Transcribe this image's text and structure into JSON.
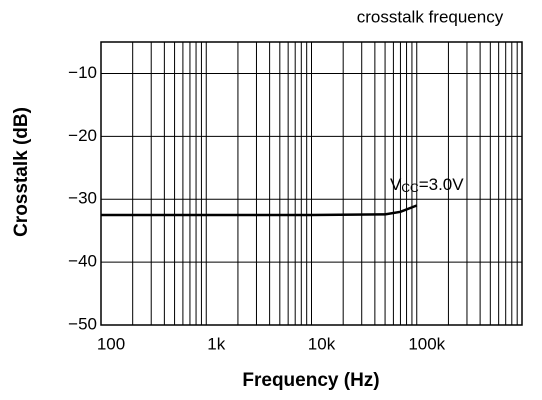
{
  "chart_data": {
    "type": "line",
    "title": "crosstalk frequency",
    "x_label": "Frequency (Hz)",
    "y_label": "Crosstalk (dB)",
    "x": [
      100,
      1000,
      10000,
      50000,
      70000,
      100000
    ],
    "series": [
      {
        "name": "VCC=3.0V",
        "color": "#000000",
        "values": [
          -32.5,
          -32.5,
          -32.5,
          -32.4,
          -32.0,
          -31.0
        ]
      }
    ],
    "annotation": [
      "V",
      "CC",
      "=3.0V"
    ],
    "xlim": [
      100,
      1000000
    ],
    "xlog": true,
    "xticks": [
      100,
      {
        "value": 1000,
        "label": "1k"
      },
      {
        "value": 10000,
        "label": "10k"
      },
      {
        "value": 100000,
        "label": "100k"
      }
    ],
    "ylim": [
      -50,
      -5
    ],
    "yticks": [
      {
        "value": -10,
        "label": "−10"
      },
      {
        "value": -20,
        "label": "−20"
      },
      {
        "value": -30,
        "label": "−30"
      },
      {
        "value": -40,
        "label": "−40"
      },
      {
        "value": -50,
        "label": "−50"
      }
    ],
    "grid": true
  }
}
